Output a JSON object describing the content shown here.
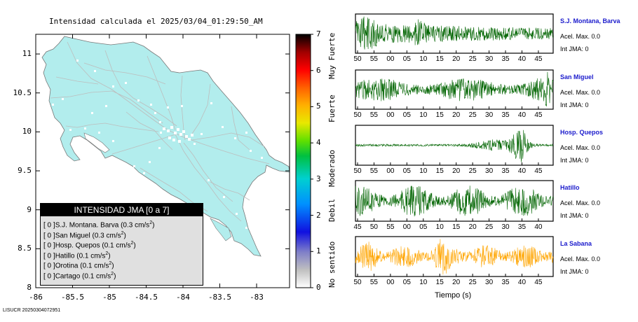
{
  "title": "Intensidad calculada el 2025/03/04_01:29:50_AM",
  "footer": "LISUCR 20250304072951",
  "map": {
    "y_ticks": [
      "11",
      "10.5",
      "10",
      "9.5",
      "9",
      "8.5",
      "8"
    ],
    "x_ticks": [
      "-86",
      "-85.5",
      "-85",
      "-84.5",
      "-84",
      "-83.5",
      "-83"
    ],
    "land_color": "#b2eded",
    "road_color": "#bdbdbd"
  },
  "legend": {
    "title": "INTENSIDAD JMA [0 a 7]",
    "rows": [
      {
        "badge": "[ 0 ]",
        "text": "S.J. Montana. Barva (0.3 cm/s",
        "sup": "2",
        "tail": ")"
      },
      {
        "badge": "[ 0 ]",
        "text": "San Miguel (0.3 cm/s",
        "sup": "2",
        "tail": ")"
      },
      {
        "badge": "[ 0 ]",
        "text": "Hosp. Quepos (0.1 cm/s",
        "sup": "2",
        "tail": ")"
      },
      {
        "badge": "[ 0 ]",
        "text": "Hatillo (0.1 cm/s",
        "sup": "2",
        "tail": ")"
      },
      {
        "badge": "[ 0 ]",
        "text": "Orotina (0.1 cm/s",
        "sup": "2",
        "tail": ")"
      },
      {
        "badge": "[ 0 ]",
        "text": "Cartago (0.1 cm/s",
        "sup": "2",
        "tail": ")"
      }
    ]
  },
  "colorbar": {
    "ticks": [
      "7",
      "6",
      "5",
      "4",
      "3",
      "2",
      "1",
      "0"
    ],
    "categories": [
      "Muy Fuerte",
      "Fuerte",
      "Moderado",
      "Debil",
      "No sentido"
    ],
    "range": [
      0,
      7
    ]
  },
  "chart_data": {
    "type": "line",
    "xlabel": "Tiempo (s)",
    "series": [
      {
        "name": "S.J. Montana, Barva",
        "accel": "Acel. Max. 0.0",
        "int": "Int JMA: 0",
        "x_ticks": [
          "50",
          "55",
          "00",
          "05",
          "10",
          "15",
          "20",
          "25",
          "30",
          "35",
          "40",
          "45"
        ],
        "color": "#006400"
      },
      {
        "name": "San Miguel",
        "accel": "Acel. Max. 0.0",
        "int": "Int JMA: 0",
        "x_ticks": [
          "50",
          "55",
          "00",
          "05",
          "10",
          "15",
          "20",
          "25",
          "30",
          "35",
          "40",
          "45"
        ],
        "color": "#006400"
      },
      {
        "name": "Hosp. Quepos",
        "accel": "Acel. Max. 0.0",
        "int": "Int JMA: 0",
        "x_ticks": [
          "50",
          "55",
          "00",
          "05",
          "10",
          "15",
          "20",
          "25",
          "30",
          "35",
          "40",
          "45"
        ],
        "color": "#006400"
      },
      {
        "name": "Hatillo",
        "accel": "Acel. Max. 0.0",
        "int": "Int JMA: 0",
        "x_ticks": [
          "45",
          "50",
          "55",
          "00",
          "05",
          "10",
          "15",
          "20",
          "25",
          "30",
          "35",
          "40"
        ],
        "color": "#006400"
      },
      {
        "name": "La Sabana",
        "accel": "Acel. Max. 0.0",
        "int": "Int JMA: 0",
        "x_ticks": [
          "50",
          "55",
          "00",
          "05",
          "10",
          "15",
          "20",
          "25",
          "30",
          "35",
          "40",
          "45"
        ],
        "color": "#ffa500"
      }
    ]
  }
}
